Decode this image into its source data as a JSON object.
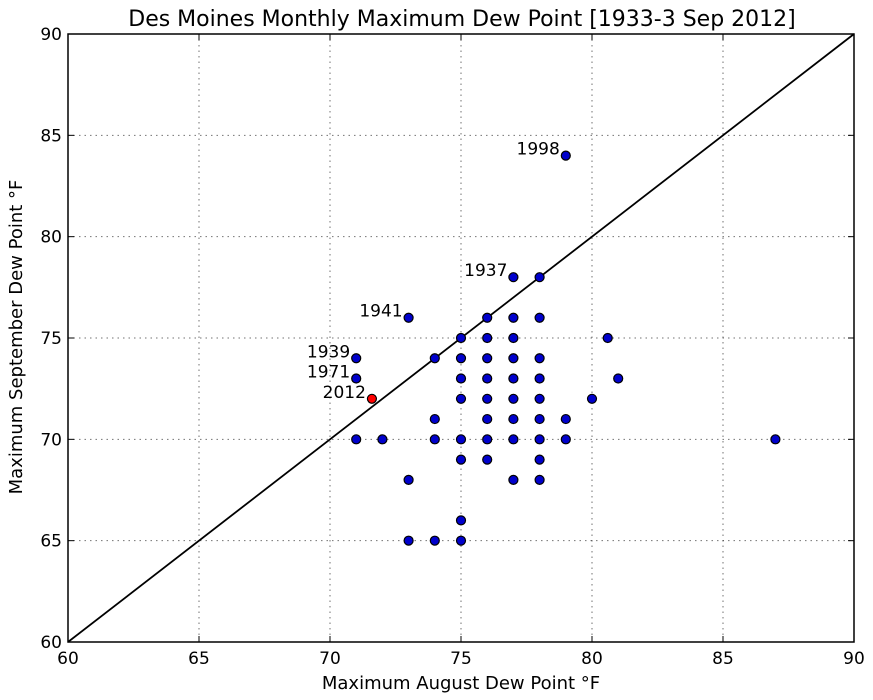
{
  "chart_data": {
    "type": "scatter",
    "title": "Des Moines Monthly Maximum Dew Point [1933-3 Sep 2012]",
    "xlabel": "Maximum August Dew Point °F",
    "ylabel": "Maximum September Dew Point °F",
    "xlim": [
      60,
      90
    ],
    "ylim": [
      60,
      90
    ],
    "xticks": [
      60,
      65,
      70,
      75,
      80,
      85,
      90
    ],
    "yticks": [
      60,
      65,
      70,
      75,
      80,
      85,
      90
    ],
    "grid": true,
    "reference_line": {
      "from": [
        60,
        60
      ],
      "to": [
        90,
        90
      ]
    },
    "series": [
      {
        "color": "#0000cc",
        "points": [
          [
            71,
            74
          ],
          [
            71,
            73
          ],
          [
            71,
            70
          ],
          [
            72,
            70
          ],
          [
            73,
            76
          ],
          [
            73,
            68
          ],
          [
            73,
            65
          ],
          [
            74,
            74
          ],
          [
            74,
            71
          ],
          [
            74,
            70
          ],
          [
            74,
            65
          ],
          [
            75,
            75
          ],
          [
            75,
            74
          ],
          [
            75,
            73
          ],
          [
            75,
            72
          ],
          [
            75,
            70
          ],
          [
            75,
            69
          ],
          [
            75,
            66
          ],
          [
            75,
            65
          ],
          [
            76,
            76
          ],
          [
            76,
            75
          ],
          [
            76,
            74
          ],
          [
            76,
            73
          ],
          [
            76,
            72
          ],
          [
            76,
            71
          ],
          [
            76,
            70
          ],
          [
            76,
            69
          ],
          [
            77,
            78
          ],
          [
            77,
            76
          ],
          [
            77,
            75
          ],
          [
            77,
            74
          ],
          [
            77,
            73
          ],
          [
            77,
            72
          ],
          [
            77,
            71
          ],
          [
            77,
            70
          ],
          [
            77,
            68
          ],
          [
            78,
            78
          ],
          [
            78,
            76
          ],
          [
            78,
            74
          ],
          [
            78,
            73
          ],
          [
            78,
            72
          ],
          [
            78,
            71
          ],
          [
            78,
            70
          ],
          [
            78,
            69
          ],
          [
            78,
            68
          ],
          [
            79,
            84
          ],
          [
            79,
            71
          ],
          [
            79,
            70
          ],
          [
            80,
            72
          ],
          [
            80.6,
            75
          ],
          [
            81,
            73
          ],
          [
            87,
            70
          ]
        ]
      },
      {
        "color": "#ff0000",
        "points": [
          [
            71.6,
            72
          ]
        ]
      }
    ],
    "annotations": [
      {
        "text": "1998",
        "x": 79,
        "y": 84
      },
      {
        "text": "1937",
        "x": 77,
        "y": 78
      },
      {
        "text": "1941",
        "x": 73,
        "y": 76
      },
      {
        "text": "1939",
        "x": 71,
        "y": 74
      },
      {
        "text": "1971",
        "x": 71,
        "y": 73
      },
      {
        "text": "2012",
        "x": 71.6,
        "y": 72
      }
    ]
  }
}
